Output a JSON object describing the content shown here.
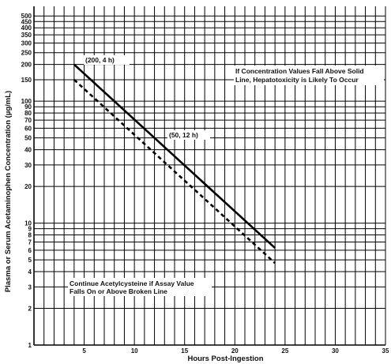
{
  "chart_data": {
    "type": "line",
    "title": "",
    "xlabel": "Hours Post-Ingestion",
    "ylabel": "Plasma or Serum Acetaminophen Concentration (µg/mL)",
    "xlim": [
      0,
      35
    ],
    "ylim": [
      1,
      600
    ],
    "yscale": "log",
    "grid": true,
    "x_ticks": [
      5,
      10,
      15,
      20,
      25,
      30,
      35
    ],
    "x_tick_labels": [
      "5",
      "10",
      "15",
      "20",
      "25",
      "30",
      "35"
    ],
    "y_ticks": [
      1,
      2,
      3,
      4,
      5,
      6,
      7,
      8,
      9,
      10,
      20,
      30,
      40,
      50,
      60,
      70,
      80,
      90,
      100,
      150,
      200,
      250,
      300,
      350,
      400,
      450,
      500
    ],
    "y_tick_labels": [
      "1",
      "2",
      "3",
      "4",
      "5",
      "6",
      "7",
      "8",
      "9",
      "10",
      "20",
      "30",
      "40",
      "50",
      "60",
      "70",
      "80",
      "90",
      "100",
      "150",
      "200",
      "250",
      "300",
      "350",
      "400",
      "450",
      "500"
    ],
    "series": [
      {
        "style": "solid",
        "x": [
          4,
          24
        ],
        "y": [
          200,
          6.25
        ]
      },
      {
        "style": "dashed",
        "x": [
          4,
          24
        ],
        "y": [
          150,
          4.7
        ]
      }
    ],
    "annotations": [
      {
        "text": "(200, 4 h)",
        "x": 4,
        "y": 200
      },
      {
        "text": "(50, 12 h)",
        "x": 12,
        "y": 50
      },
      {
        "lines": [
          "If Concentration Values Fall Above Solid",
          "Line, Hepatotoxicity is Likely To Occur"
        ]
      },
      {
        "lines": [
          "Continue Acetylcysteine if Assay Value",
          "Falls On or Above Broken Line"
        ]
      }
    ]
  }
}
